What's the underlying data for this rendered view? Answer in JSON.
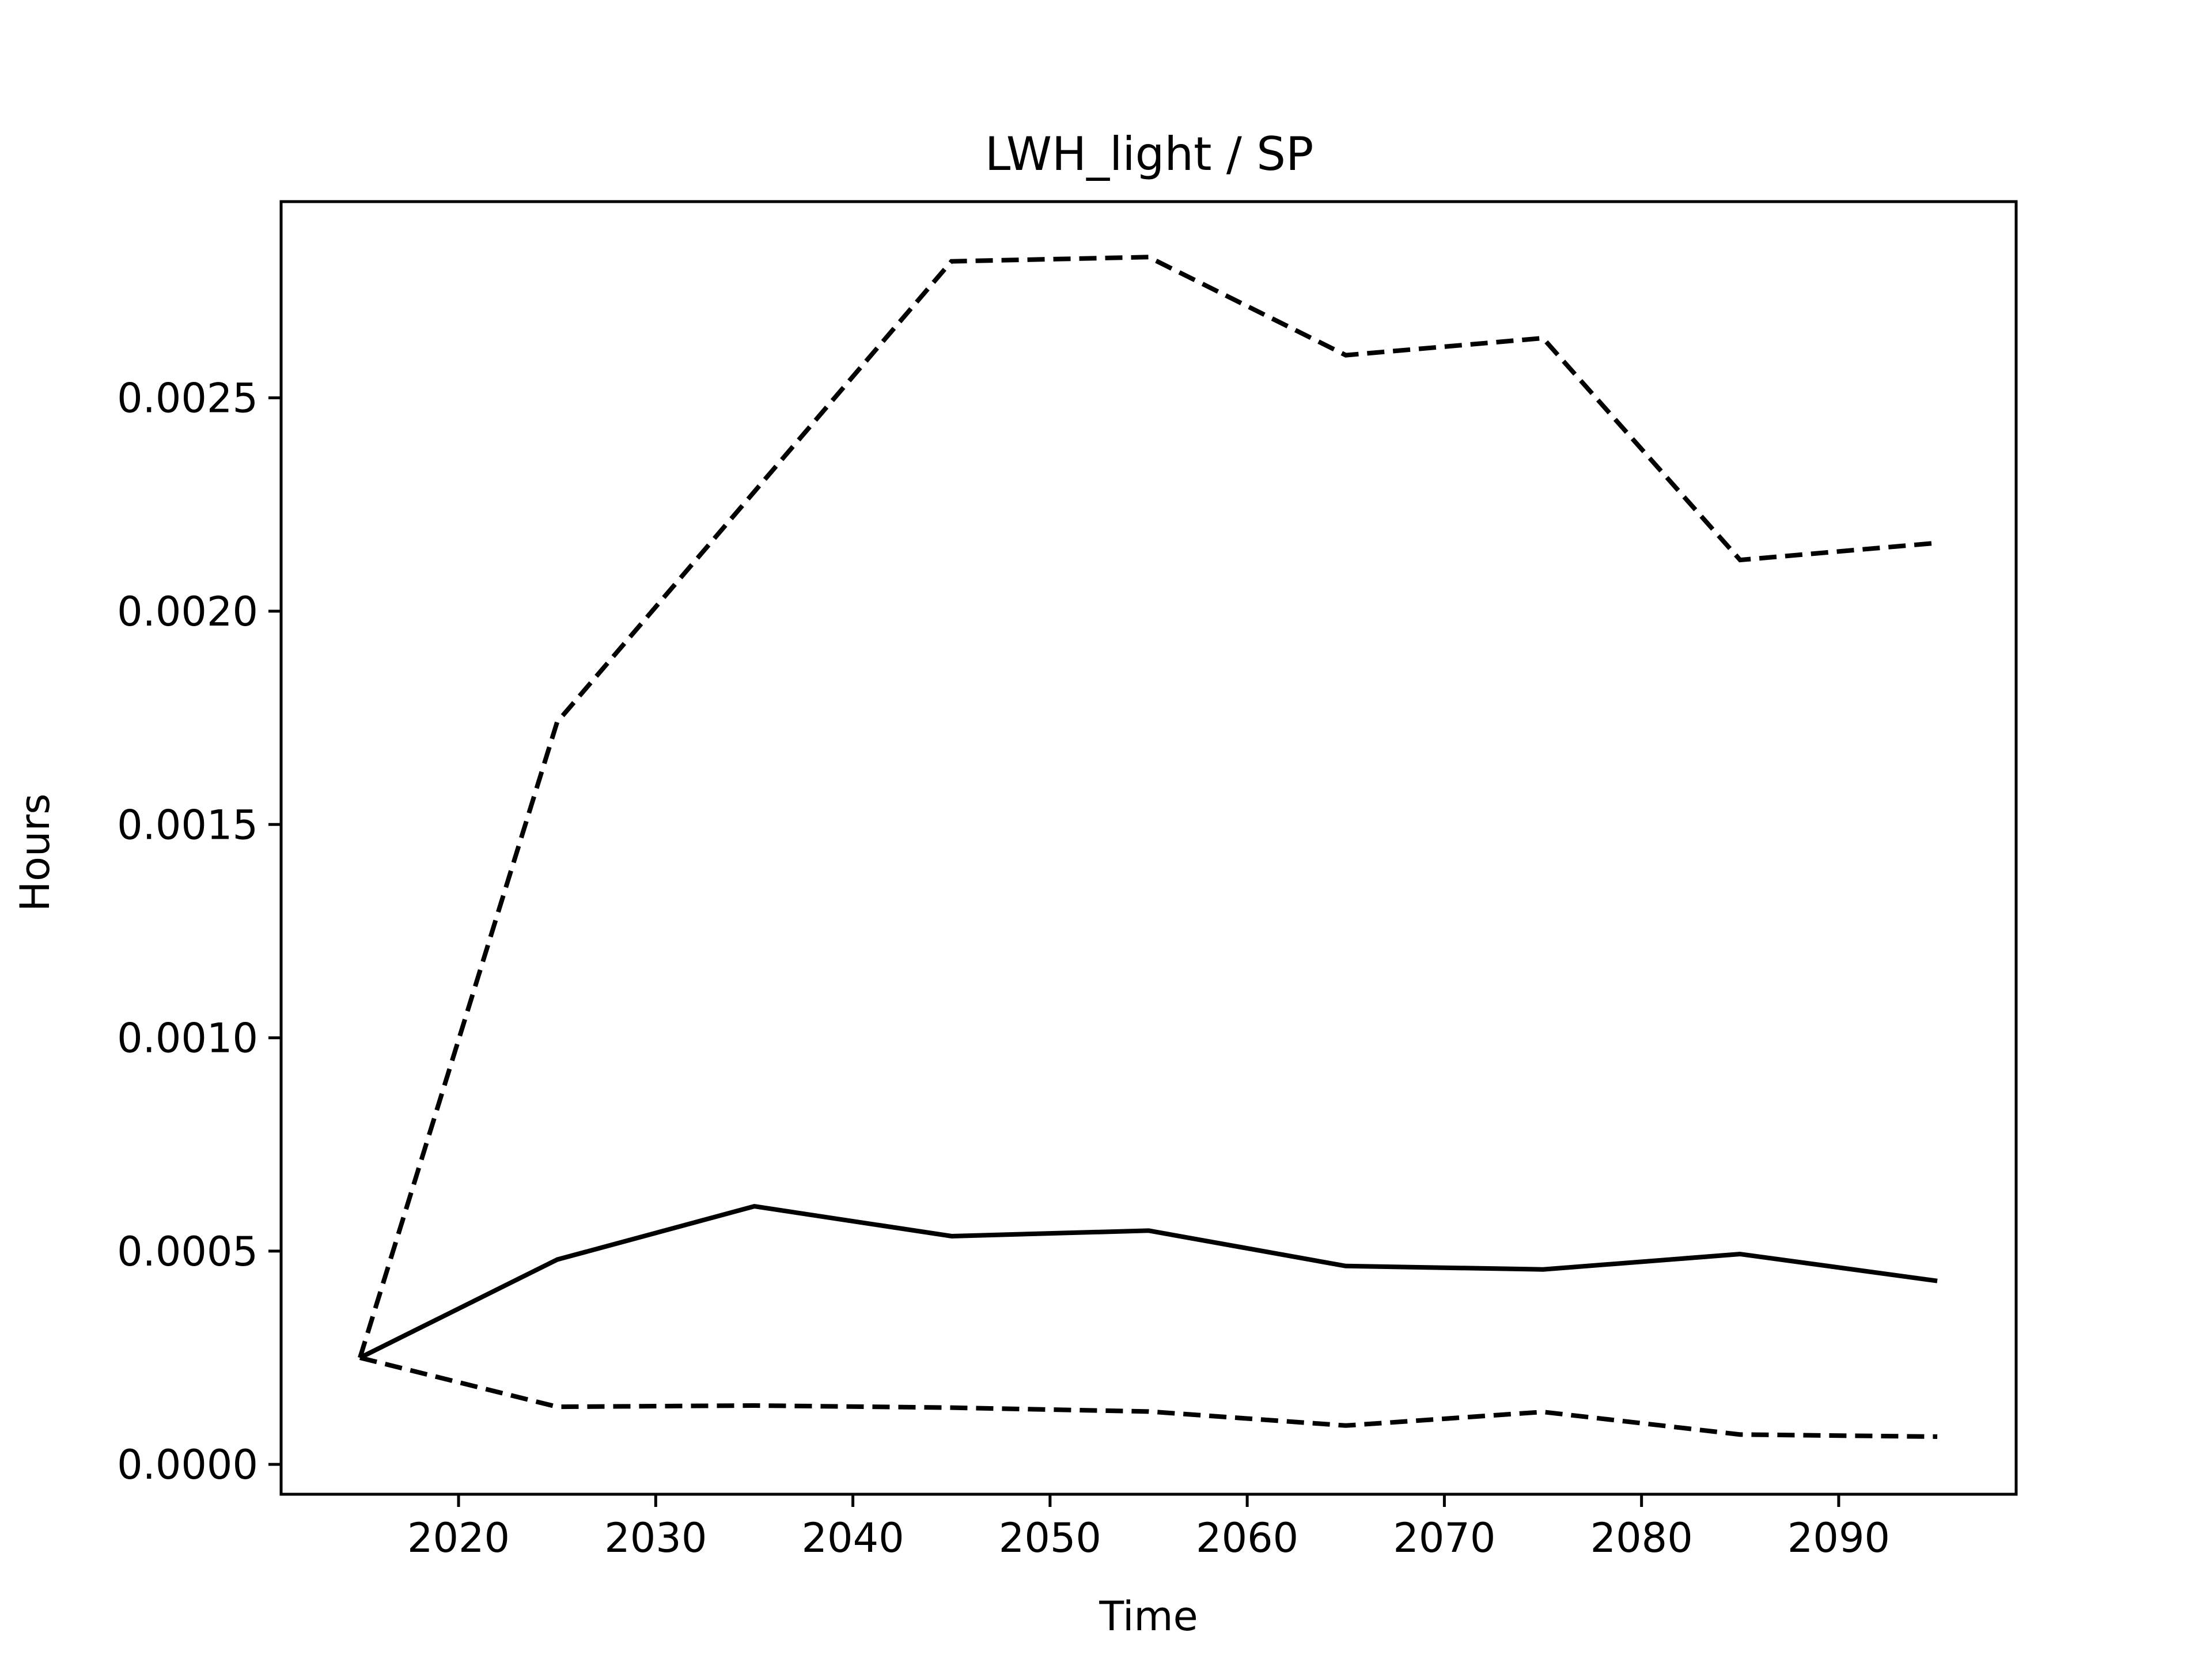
{
  "chart_data": {
    "type": "line",
    "title": "LWH_light / SP",
    "xlabel": "Time",
    "ylabel": "Hours",
    "xlim": [
      2011,
      2099
    ],
    "ylim": [
      -7e-05,
      0.00296
    ],
    "xticks": [
      2020,
      2030,
      2040,
      2050,
      2060,
      2070,
      2080,
      2090
    ],
    "xtick_labels": [
      "2020",
      "2030",
      "2040",
      "2050",
      "2060",
      "2070",
      "2080",
      "2090"
    ],
    "yticks": [
      0.0,
      0.0005,
      0.001,
      0.0015,
      0.002,
      0.0025
    ],
    "ytick_labels": [
      "0.0000",
      "0.0005",
      "0.0010",
      "0.0015",
      "0.0020",
      "0.0025"
    ],
    "grid": false,
    "legend": false,
    "x": [
      2015,
      2025,
      2035,
      2045,
      2055,
      2065,
      2075,
      2085,
      2095
    ],
    "series": [
      {
        "style": "solid",
        "color": "#000000",
        "values": [
          0.00025,
          0.00048,
          0.000605,
          0.000535,
          0.000548,
          0.000465,
          0.000457,
          0.000493,
          0.00043
        ]
      },
      {
        "style": "dashed",
        "color": "#000000",
        "values": [
          0.00025,
          0.00174,
          0.00228,
          0.00282,
          0.00283,
          0.0026,
          0.00264,
          0.00212,
          0.00216
        ]
      },
      {
        "style": "dashed",
        "color": "#000000",
        "values": [
          0.00025,
          0.000135,
          0.000138,
          0.000133,
          0.000124,
          9.1e-05,
          0.000123,
          7e-05,
          6.5e-05
        ]
      }
    ]
  }
}
